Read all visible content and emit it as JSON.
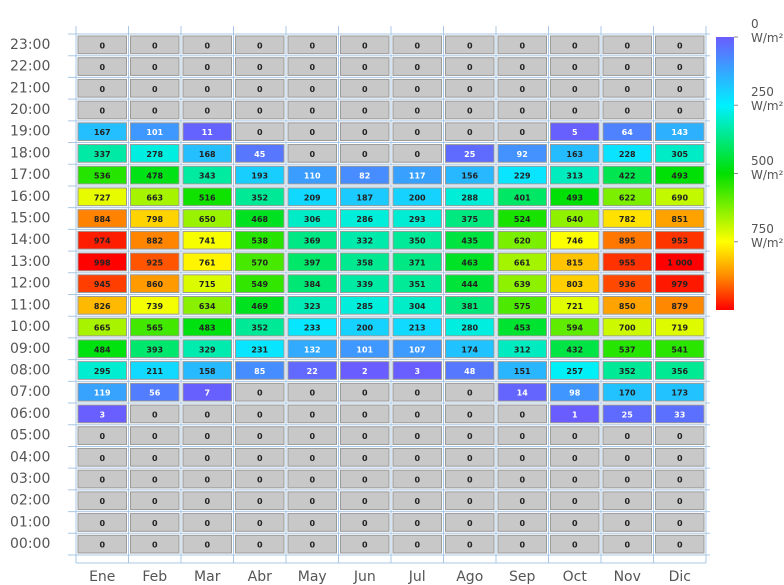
{
  "chart_data": {
    "type": "heatmap",
    "categories": [
      "Ene",
      "Feb",
      "Mar",
      "Abr",
      "May",
      "Jun",
      "Jul",
      "Ago",
      "Sep",
      "Oct",
      "Nov",
      "Dic"
    ],
    "rows": [
      "23:00",
      "22:00",
      "21:00",
      "20:00",
      "19:00",
      "18:00",
      "17:00",
      "16:00",
      "15:00",
      "14:00",
      "13:00",
      "12:00",
      "11:00",
      "10:00",
      "09:00",
      "08:00",
      "07:00",
      "06:00",
      "05:00",
      "04:00",
      "03:00",
      "02:00",
      "01:00",
      "00:00"
    ],
    "z": [
      [
        0,
        0,
        0,
        0,
        0,
        0,
        0,
        0,
        0,
        0,
        0,
        0
      ],
      [
        0,
        0,
        0,
        0,
        0,
        0,
        0,
        0,
        0,
        0,
        0,
        0
      ],
      [
        0,
        0,
        0,
        0,
        0,
        0,
        0,
        0,
        0,
        0,
        0,
        0
      ],
      [
        0,
        0,
        0,
        0,
        0,
        0,
        0,
        0,
        0,
        0,
        0,
        0
      ],
      [
        167,
        101,
        11,
        0,
        0,
        0,
        0,
        0,
        0,
        5,
        64,
        143
      ],
      [
        337,
        278,
        168,
        45,
        0,
        0,
        0,
        25,
        92,
        163,
        228,
        305
      ],
      [
        536,
        478,
        343,
        193,
        110,
        82,
        117,
        156,
        229,
        313,
        422,
        493
      ],
      [
        727,
        663,
        516,
        352,
        209,
        187,
        200,
        288,
        401,
        493,
        622,
        690
      ],
      [
        884,
        798,
        650,
        468,
        306,
        286,
        293,
        375,
        524,
        640,
        782,
        851
      ],
      [
        974,
        882,
        741,
        538,
        369,
        332,
        350,
        435,
        620,
        746,
        895,
        953
      ],
      [
        998,
        925,
        761,
        570,
        397,
        358,
        371,
        463,
        661,
        815,
        955,
        1000
      ],
      [
        945,
        860,
        715,
        549,
        384,
        339,
        351,
        444,
        639,
        803,
        936,
        979
      ],
      [
        826,
        739,
        634,
        469,
        323,
        285,
        304,
        381,
        575,
        721,
        850,
        879
      ],
      [
        665,
        565,
        483,
        352,
        233,
        200,
        213,
        280,
        453,
        594,
        700,
        719
      ],
      [
        484,
        393,
        329,
        231,
        132,
        101,
        107,
        174,
        312,
        432,
        537,
        541
      ],
      [
        295,
        211,
        158,
        85,
        22,
        2,
        3,
        48,
        151,
        257,
        352,
        356
      ],
      [
        119,
        56,
        7,
        0,
        0,
        0,
        0,
        0,
        14,
        98,
        170,
        173
      ],
      [
        3,
        0,
        0,
        0,
        0,
        0,
        0,
        0,
        0,
        1,
        25,
        33
      ],
      [
        0,
        0,
        0,
        0,
        0,
        0,
        0,
        0,
        0,
        0,
        0,
        0
      ],
      [
        0,
        0,
        0,
        0,
        0,
        0,
        0,
        0,
        0,
        0,
        0,
        0
      ],
      [
        0,
        0,
        0,
        0,
        0,
        0,
        0,
        0,
        0,
        0,
        0,
        0
      ],
      [
        0,
        0,
        0,
        0,
        0,
        0,
        0,
        0,
        0,
        0,
        0,
        0
      ],
      [
        0,
        0,
        0,
        0,
        0,
        0,
        0,
        0,
        0,
        0,
        0,
        0
      ],
      [
        0,
        0,
        0,
        0,
        0,
        0,
        0,
        0,
        0,
        0,
        0,
        0
      ]
    ],
    "value_labels": [
      [
        "0",
        "0",
        "0",
        "0",
        "0",
        "0",
        "0",
        "0",
        "0",
        "0",
        "0",
        "0"
      ],
      [
        "0",
        "0",
        "0",
        "0",
        "0",
        "0",
        "0",
        "0",
        "0",
        "0",
        "0",
        "0"
      ],
      [
        "0",
        "0",
        "0",
        "0",
        "0",
        "0",
        "0",
        "0",
        "0",
        "0",
        "0",
        "0"
      ],
      [
        "0",
        "0",
        "0",
        "0",
        "0",
        "0",
        "0",
        "0",
        "0",
        "0",
        "0",
        "0"
      ],
      [
        "167",
        "101",
        "11",
        "0",
        "0",
        "0",
        "0",
        "0",
        "0",
        "5",
        "64",
        "143"
      ],
      [
        "337",
        "278",
        "168",
        "45",
        "0",
        "0",
        "0",
        "25",
        "92",
        "163",
        "228",
        "305"
      ],
      [
        "536",
        "478",
        "343",
        "193",
        "110",
        "82",
        "117",
        "156",
        "229",
        "313",
        "422",
        "493"
      ],
      [
        "727",
        "663",
        "516",
        "352",
        "209",
        "187",
        "200",
        "288",
        "401",
        "493",
        "622",
        "690"
      ],
      [
        "884",
        "798",
        "650",
        "468",
        "306",
        "286",
        "293",
        "375",
        "524",
        "640",
        "782",
        "851"
      ],
      [
        "974",
        "882",
        "741",
        "538",
        "369",
        "332",
        "350",
        "435",
        "620",
        "746",
        "895",
        "953"
      ],
      [
        "998",
        "925",
        "761",
        "570",
        "397",
        "358",
        "371",
        "463",
        "661",
        "815",
        "955",
        "1 000"
      ],
      [
        "945",
        "860",
        "715",
        "549",
        "384",
        "339",
        "351",
        "444",
        "639",
        "803",
        "936",
        "979"
      ],
      [
        "826",
        "739",
        "634",
        "469",
        "323",
        "285",
        "304",
        "381",
        "575",
        "721",
        "850",
        "879"
      ],
      [
        "665",
        "565",
        "483",
        "352",
        "233",
        "200",
        "213",
        "280",
        "453",
        "594",
        "700",
        "719"
      ],
      [
        "484",
        "393",
        "329",
        "231",
        "132",
        "101",
        "107",
        "174",
        "312",
        "432",
        "537",
        "541"
      ],
      [
        "295",
        "211",
        "158",
        "85",
        "22",
        "2",
        "3",
        "48",
        "151",
        "257",
        "352",
        "356"
      ],
      [
        "119",
        "56",
        "7",
        "0",
        "0",
        "0",
        "0",
        "0",
        "14",
        "98",
        "170",
        "173"
      ],
      [
        "3",
        "0",
        "0",
        "0",
        "0",
        "0",
        "0",
        "0",
        "0",
        "1",
        "25",
        "33"
      ],
      [
        "0",
        "0",
        "0",
        "0",
        "0",
        "0",
        "0",
        "0",
        "0",
        "0",
        "0",
        "0"
      ],
      [
        "0",
        "0",
        "0",
        "0",
        "0",
        "0",
        "0",
        "0",
        "0",
        "0",
        "0",
        "0"
      ],
      [
        "0",
        "0",
        "0",
        "0",
        "0",
        "0",
        "0",
        "0",
        "0",
        "0",
        "0",
        "0"
      ],
      [
        "0",
        "0",
        "0",
        "0",
        "0",
        "0",
        "0",
        "0",
        "0",
        "0",
        "0",
        "0"
      ],
      [
        "0",
        "0",
        "0",
        "0",
        "0",
        "0",
        "0",
        "0",
        "0",
        "0",
        "0",
        "0"
      ],
      [
        "0",
        "0",
        "0",
        "0",
        "0",
        "0",
        "0",
        "0",
        "0",
        "0",
        "0",
        "0"
      ]
    ],
    "zero_color": "#c8c8c8",
    "colorscale": [
      [
        0,
        "#6a5cff"
      ],
      [
        250,
        "#00f0ff"
      ],
      [
        500,
        "#00e000"
      ],
      [
        750,
        "#ffff00"
      ],
      [
        875,
        "#ff8c00"
      ],
      [
        1000,
        "#ff0000"
      ]
    ],
    "zlim": [
      0,
      1000
    ],
    "colorbar_ticks": [
      {
        "value": 0,
        "label": "0 W/m²"
      },
      {
        "value": 250,
        "label": "250 W/m²"
      },
      {
        "value": 500,
        "label": "500 W/m²"
      },
      {
        "value": 750,
        "label": "750 W/m²"
      }
    ]
  }
}
